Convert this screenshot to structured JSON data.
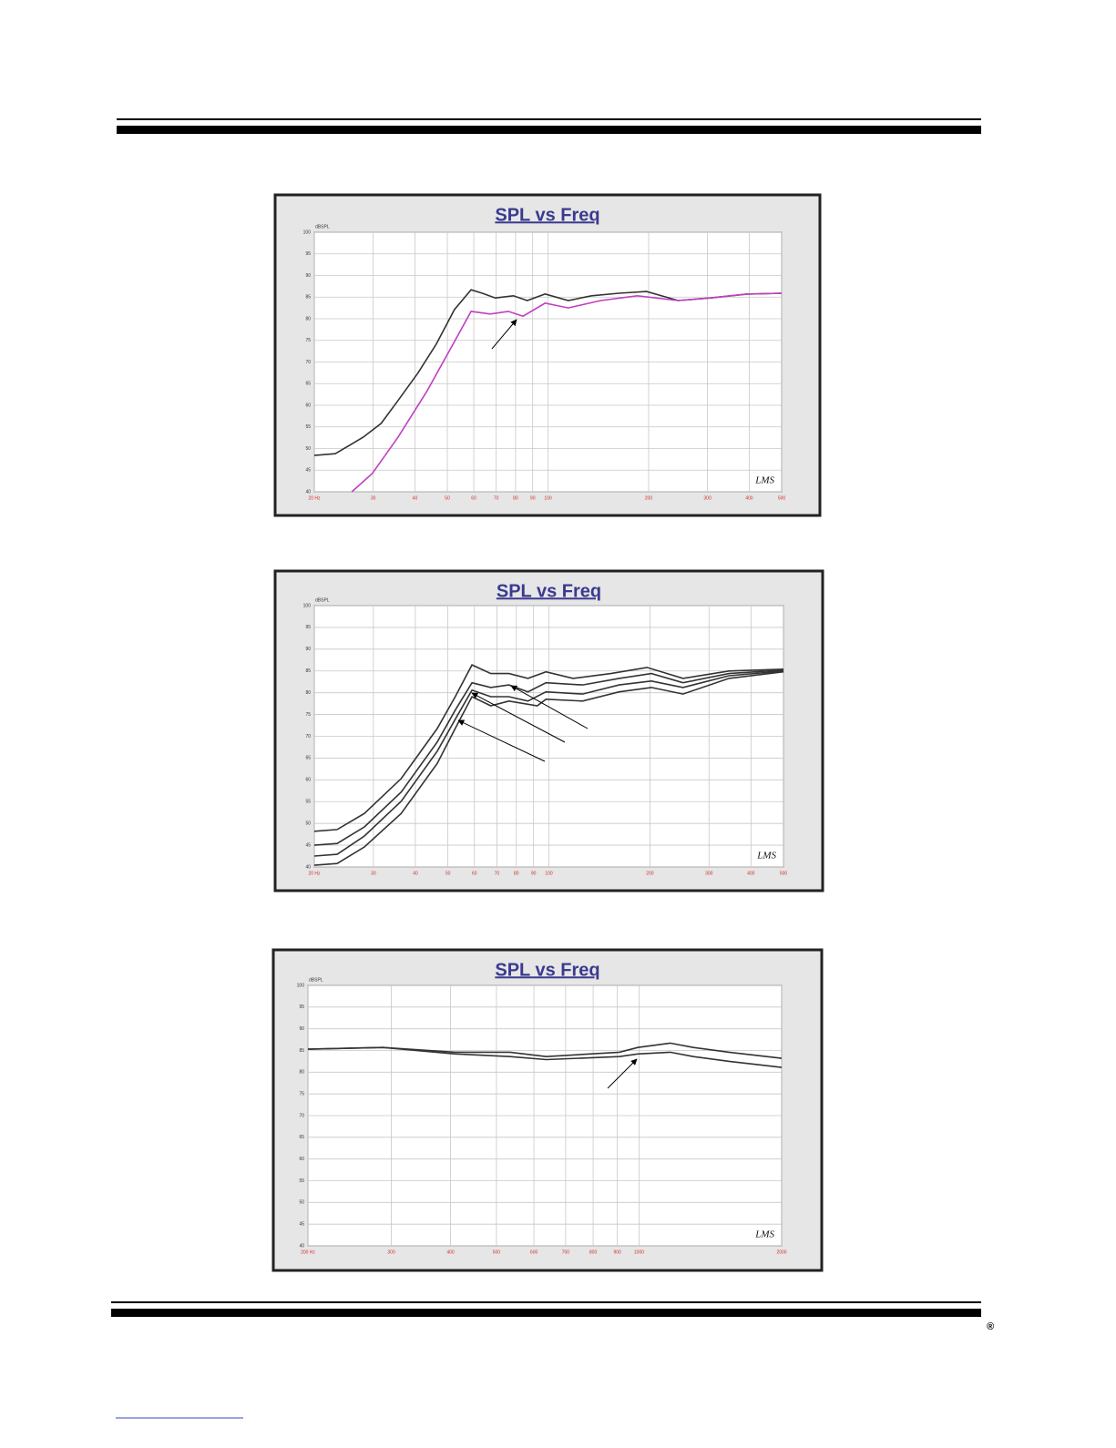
{
  "chart_data": [
    {
      "type": "line",
      "title": "SPL vs Freq",
      "y_label": "dBSPL",
      "logo": "LMS",
      "xscale": "log",
      "grid": true,
      "xlim": [
        20,
        500
      ],
      "ylim": [
        40,
        100
      ],
      "xticks": [
        {
          "value": 20,
          "label": "20 Hz"
        },
        30,
        40,
        50,
        60,
        70,
        80,
        90,
        100,
        200,
        300,
        400,
        500
      ],
      "yticks": [
        40,
        45,
        50,
        55,
        60,
        65,
        70,
        75,
        80,
        85,
        90,
        95,
        100
      ],
      "series": [
        {
          "color": "#333333",
          "x": [
            20,
            23.1,
            28,
            31.7,
            35.6,
            40.8,
            46.3,
            52.5,
            58.9,
            63.6,
            69.6,
            78.8,
            86.7,
            98,
            115,
            135,
            163,
            197,
            245,
            306,
            394,
            500
          ],
          "values": [
            48.4,
            48.8,
            52.6,
            55.8,
            61.1,
            67.4,
            74.1,
            82.1,
            86.7,
            85.9,
            84.8,
            85.3,
            84.2,
            85.7,
            84.2,
            85.3,
            85.9,
            86.3,
            84.2,
            84.8,
            85.7,
            85.9
          ]
        },
        {
          "color": "#c040c0",
          "x": [
            25.9,
            29.8,
            35.6,
            43.4,
            52.5,
            58.9,
            67.2,
            76.1,
            84.2,
            98,
            115,
            144,
            185,
            245,
            306,
            394,
            500
          ],
          "values": [
            40,
            44.2,
            52.6,
            63.2,
            74.7,
            81.7,
            81.1,
            81.7,
            80.6,
            83.6,
            82.5,
            84.2,
            85.3,
            84.2,
            84.8,
            85.7,
            85.9
          ]
        }
      ]
    },
    {
      "type": "line",
      "title": "SPL vs Freq",
      "y_label": "dBSPL",
      "logo": "LMS",
      "xscale": "log",
      "grid": true,
      "xlim": [
        20,
        500
      ],
      "ylim": [
        40,
        100
      ],
      "xticks": [
        {
          "value": 20,
          "label": "20 Hz"
        },
        30,
        40,
        50,
        60,
        70,
        80,
        90,
        100,
        200,
        300,
        400,
        500
      ],
      "yticks": [
        40,
        45,
        50,
        55,
        60,
        65,
        70,
        75,
        80,
        85,
        90,
        95,
        100
      ],
      "series": [
        {
          "color": "#333333",
          "x": [
            20,
            23.4,
            28.2,
            36.3,
            46.5,
            52.6,
            59,
            67.1,
            76,
            86.6,
            98,
            118,
            153,
            196,
            251,
            344,
            500
          ],
          "values": [
            48.2,
            48.6,
            52.3,
            60.3,
            71.8,
            79.1,
            86.4,
            84.4,
            84.4,
            83.3,
            84.8,
            83.3,
            84.4,
            85.8,
            83.3,
            85,
            85.4
          ]
        },
        {
          "color": "#333333",
          "x": [
            20,
            23.4,
            28.2,
            36.3,
            46.5,
            52.6,
            59,
            67.1,
            76,
            86.6,
            98,
            126,
            162,
            202,
            251,
            344,
            500
          ],
          "values": [
            45,
            45.4,
            49.2,
            57.2,
            68.7,
            76,
            82.3,
            81.2,
            81.8,
            80.2,
            82.3,
            81.8,
            83.3,
            84.4,
            82.3,
            84.4,
            85.2
          ]
        },
        {
          "color": "#333333",
          "x": [
            20,
            23.4,
            28.2,
            36.3,
            46.5,
            52.6,
            59,
            67.1,
            76,
            86.6,
            98,
            126,
            162,
            202,
            251,
            344,
            500
          ],
          "values": [
            42.5,
            42.9,
            47.1,
            55.1,
            66.6,
            73.9,
            80.6,
            79.1,
            79.1,
            78.1,
            80.2,
            79.7,
            81.8,
            82.7,
            81.2,
            83.9,
            85
          ]
        },
        {
          "color": "#333333",
          "x": [
            20,
            23.4,
            28.2,
            36.3,
            46.5,
            52.6,
            59,
            67.1,
            76,
            92.3,
            98,
            126,
            162,
            202,
            251,
            344,
            500
          ],
          "values": [
            40.4,
            40.8,
            44.6,
            52.3,
            63.8,
            71.8,
            79.1,
            77,
            78.1,
            77,
            78.5,
            78.1,
            80.2,
            81.2,
            79.7,
            83.3,
            84.8
          ]
        }
      ]
    },
    {
      "type": "line",
      "title": "SPL vs Freq",
      "y_label": "dBSPL",
      "logo": "LMS",
      "xscale": "log",
      "grid": true,
      "xlim": [
        200,
        2000
      ],
      "ylim": [
        40,
        100
      ],
      "xticks": [
        {
          "value": 200,
          "label": "200 Hz"
        },
        300,
        400,
        500,
        600,
        700,
        800,
        900,
        1000,
        2000
      ],
      "yticks": [
        40,
        45,
        50,
        55,
        60,
        65,
        70,
        75,
        80,
        85,
        90,
        95,
        100
      ],
      "series": [
        {
          "color": "#333333",
          "x": [
            200,
            288,
            409,
            534,
            637,
            909,
            994,
            1163,
            1302,
            1549,
            2000
          ],
          "values": [
            85.3,
            85.7,
            84.6,
            84.6,
            83.6,
            84.6,
            85.7,
            86.7,
            85.7,
            84.6,
            83.2
          ]
        },
        {
          "color": "#333333",
          "x": [
            200,
            288,
            409,
            534,
            637,
            909,
            994,
            1163,
            1302,
            1549,
            2000
          ],
          "values": [
            85.3,
            85.7,
            84.2,
            83.6,
            82.9,
            83.6,
            84.2,
            84.6,
            83.6,
            82.5,
            81.1
          ]
        }
      ]
    }
  ]
}
